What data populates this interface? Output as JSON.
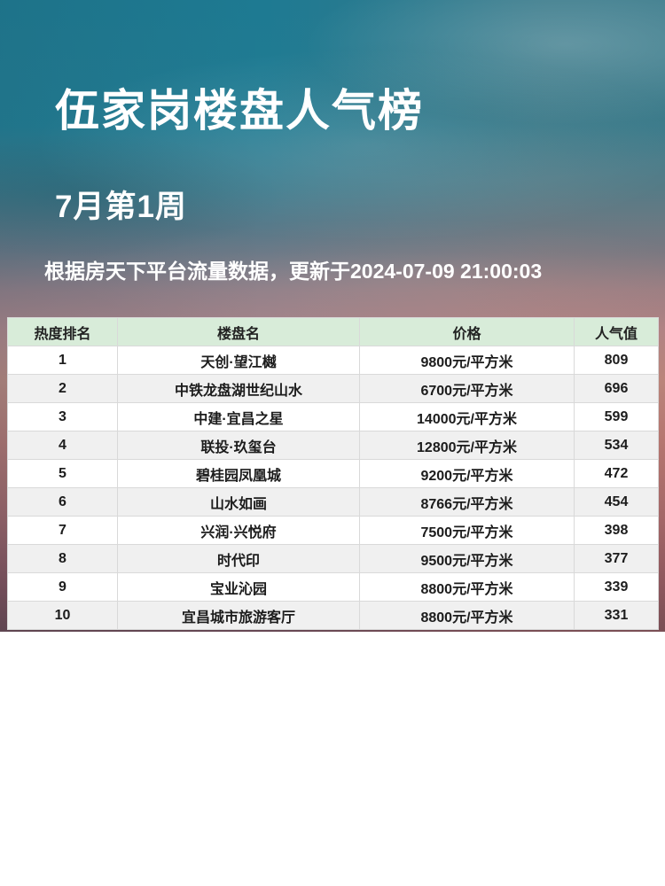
{
  "poster": {
    "title": "伍家岗楼盘人气榜",
    "subtitle": "7月第1周",
    "update_note": "根据房天下平台流量数据，更新于2024-07-09 21:00:03"
  },
  "table": {
    "columns": [
      "热度排名",
      "楼盘名",
      "价格",
      "人气值"
    ],
    "rows": [
      {
        "rank": "1",
        "name": "天创·望江樾",
        "price": "9800元/平方米",
        "popularity": "809"
      },
      {
        "rank": "2",
        "name": "中铁龙盘湖世纪山水",
        "price": "6700元/平方米",
        "popularity": "696"
      },
      {
        "rank": "3",
        "name": "中建·宜昌之星",
        "price": "14000元/平方米",
        "popularity": "599"
      },
      {
        "rank": "4",
        "name": "联投·玖玺台",
        "price": "12800元/平方米",
        "popularity": "534"
      },
      {
        "rank": "5",
        "name": "碧桂园凤凰城",
        "price": "9200元/平方米",
        "popularity": "472"
      },
      {
        "rank": "6",
        "name": "山水如画",
        "price": "8766元/平方米",
        "popularity": "454"
      },
      {
        "rank": "7",
        "name": "兴润·兴悦府",
        "price": "7500元/平方米",
        "popularity": "398"
      },
      {
        "rank": "8",
        "name": "时代印",
        "price": "9500元/平方米",
        "popularity": "377"
      },
      {
        "rank": "9",
        "name": "宝业沁园",
        "price": "8800元/平方米",
        "popularity": "339"
      },
      {
        "rank": "10",
        "name": "宜昌城市旅游客厅",
        "price": "8800元/平方米",
        "popularity": "331"
      }
    ]
  },
  "colors": {
    "header_bg": "#d8ecd9",
    "row_alt_bg": "#f0f0f0",
    "grid_line": "#d9d9d9",
    "cell_text": "#1c1c1c",
    "title_text": "#ffffff",
    "sky_teal_top": "#1e7a92",
    "sunset_rose_mid": "#b0857f",
    "maroon_bottom": "#664753"
  },
  "chart_data": {
    "type": "table",
    "title": "伍家岗楼盘人气榜",
    "subtitle": "7月第1周",
    "source_note": "根据房天下平台流量数据，更新于2024-07-09 21:00:03",
    "columns": [
      "热度排名",
      "楼盘名",
      "价格",
      "人气值"
    ],
    "rows": [
      [
        1,
        "天创·望江樾",
        "9800元/平方米",
        809
      ],
      [
        2,
        "中铁龙盘湖世纪山水",
        "6700元/平方米",
        696
      ],
      [
        3,
        "中建·宜昌之星",
        "14000元/平方米",
        599
      ],
      [
        4,
        "联投·玖玺台",
        "12800元/平方米",
        534
      ],
      [
        5,
        "碧桂园凤凰城",
        "9200元/平方米",
        472
      ],
      [
        6,
        "山水如画",
        "8766元/平方米",
        454
      ],
      [
        7,
        "兴润·兴悦府",
        "7500元/平方米",
        398
      ],
      [
        8,
        "时代印",
        "9500元/平方米",
        377
      ],
      [
        9,
        "宝业沁园",
        "8800元/平方米",
        339
      ],
      [
        10,
        "宜昌城市旅游客厅",
        "8800元/平方米",
        331
      ]
    ]
  }
}
